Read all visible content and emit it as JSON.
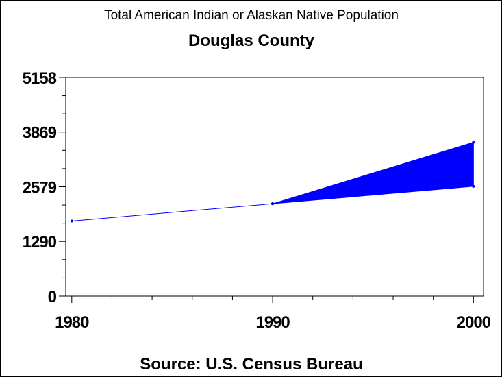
{
  "chart_data": {
    "type": "line",
    "title": "Total American Indian or Alaskan Native Population",
    "subtitle": "Douglas County",
    "footnote": "Source: U.S. Census Bureau",
    "xlabel": "",
    "ylabel": "",
    "x": [
      1980,
      1990,
      2000
    ],
    "xlim": [
      1979.7,
      2000.5
    ],
    "x_ticks": [
      "1980",
      "1990",
      "2000"
    ],
    "ylim": [
      0,
      5158
    ],
    "y_ticks": [
      "0",
      "1290",
      "2579",
      "3869",
      "5158"
    ],
    "grid": false,
    "series": [
      {
        "values": [
          1770,
          2180,
          null
        ]
      }
    ],
    "projection_band": {
      "x": [
        1990,
        2000
      ],
      "upper": [
        2180,
        3630
      ],
      "lower": [
        2180,
        2590
      ]
    },
    "colors": {
      "line": "#0000ff",
      "band": "#0000ff",
      "axis": "#000000"
    }
  }
}
